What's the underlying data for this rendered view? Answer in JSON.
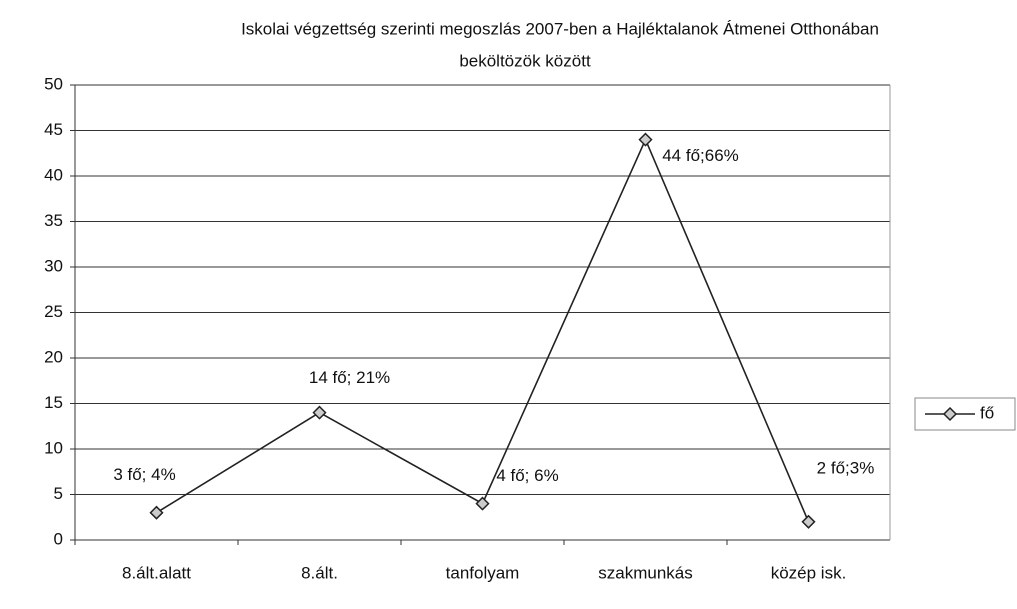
{
  "chart_data": {
    "type": "line",
    "title": [
      "Iskolai végzettség szerinti megoszlás 2007-ben a Hajléktalanok Átmenei Otthonában",
      "beköltözök között"
    ],
    "categories": [
      "8.ált.alatt",
      "8.ált.",
      "tanfolyam",
      "szakmunkás",
      "közép isk."
    ],
    "series": [
      {
        "name": "fő",
        "color": "#222222",
        "values": [
          3,
          14,
          4,
          44,
          2
        ],
        "value_labels": [
          "3 fő; 4%",
          "14 fő; 21%",
          "4 fő; 6%",
          "44 fő;66%",
          "2 fő;3%"
        ]
      }
    ],
    "ylim": [
      0,
      50
    ],
    "yticks": [
      0,
      5,
      10,
      15,
      20,
      25,
      30,
      35,
      40,
      45,
      50
    ],
    "grid": true,
    "legend": "right"
  }
}
